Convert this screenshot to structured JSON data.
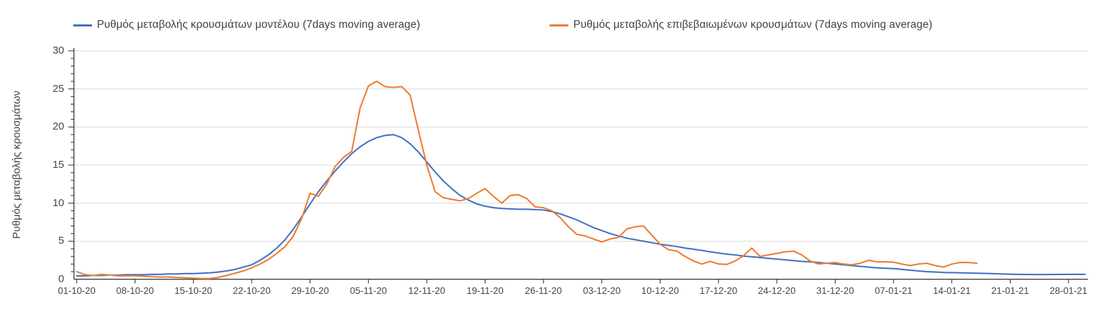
{
  "legend": {
    "items": [
      {
        "label": "Ρυθμός μεταβολής κρουσμάτων μοντέλου (7days moving average)",
        "color": "#4472c4"
      },
      {
        "label": "Ρυθμός μεταβολής επιβεβαιωμένων κρουσμάτων (7days moving average)",
        "color": "#ed7d31"
      }
    ]
  },
  "y_axis": {
    "title": "Ρυθμός μεταβολής κρουσμάτων",
    "tick_values": [
      0,
      5,
      10,
      15,
      20,
      25,
      30
    ],
    "minor_tick_step": 1,
    "min": 0,
    "max": 30
  },
  "x_axis": {
    "tick_labels": [
      "01-10-20",
      "08-10-20",
      "15-10-20",
      "22-10-20",
      "29-10-20",
      "05-11-20",
      "12-11-20",
      "19-11-20",
      "26-11-20",
      "03-12-20",
      "10-12-20",
      "17-12-20",
      "24-12-20",
      "31-12-20",
      "07-01-21",
      "14-01-21",
      "21-01-21",
      "28-01-21"
    ],
    "days_between_ticks": 7
  },
  "chart_data": {
    "type": "line",
    "title": "",
    "xlabel": "",
    "ylabel": "Ρυθμός μεταβολής κρουσμάτων",
    "ylim": [
      0,
      30
    ],
    "grid": "horizontal",
    "legend_position": "top",
    "x_start_date": "01-10-20",
    "x_frequency": "daily",
    "series": [
      {
        "name": "Ρυθμός μεταβολής κρουσμάτων μοντέλου (7days moving average)",
        "color": "#4472c4",
        "end_date": "30-01-21",
        "values": [
          0.45,
          0.45,
          0.5,
          0.5,
          0.55,
          0.55,
          0.6,
          0.6,
          0.6,
          0.65,
          0.65,
          0.7,
          0.7,
          0.75,
          0.75,
          0.8,
          0.85,
          0.95,
          1.1,
          1.3,
          1.6,
          1.9,
          2.5,
          3.2,
          4.1,
          5.2,
          6.6,
          8.2,
          9.9,
          11.5,
          12.9,
          14.2,
          15.4,
          16.5,
          17.4,
          18.1,
          18.6,
          18.9,
          19.0,
          18.6,
          17.8,
          16.7,
          15.4,
          14.1,
          12.9,
          11.9,
          11.0,
          10.4,
          9.9,
          9.6,
          9.4,
          9.3,
          9.25,
          9.2,
          9.2,
          9.15,
          9.1,
          8.9,
          8.6,
          8.2,
          7.8,
          7.3,
          6.8,
          6.4,
          6.0,
          5.7,
          5.4,
          5.2,
          5.0,
          4.8,
          4.6,
          4.45,
          4.3,
          4.1,
          3.95,
          3.8,
          3.6,
          3.45,
          3.3,
          3.2,
          3.05,
          2.95,
          2.85,
          2.75,
          2.65,
          2.55,
          2.45,
          2.35,
          2.3,
          2.2,
          2.1,
          2.0,
          1.9,
          1.8,
          1.7,
          1.6,
          1.5,
          1.45,
          1.4,
          1.3,
          1.2,
          1.1,
          1.0,
          0.95,
          0.9,
          0.88,
          0.85,
          0.82,
          0.8,
          0.77,
          0.74,
          0.7,
          0.67,
          0.65,
          0.63,
          0.62,
          0.62,
          0.63,
          0.64,
          0.65,
          0.65,
          0.65
        ]
      },
      {
        "name": "Ρυθμός μεταβολής επιβεβαιωμένων κρουσμάτων (7days moving average)",
        "color": "#ed7d31",
        "end_date": "17-01-21",
        "values": [
          1.0,
          0.6,
          0.5,
          0.65,
          0.55,
          0.45,
          0.45,
          0.45,
          0.4,
          0.35,
          0.3,
          0.3,
          0.25,
          0.2,
          0.15,
          0.1,
          0.1,
          0.25,
          0.5,
          0.8,
          1.1,
          1.5,
          2.0,
          2.6,
          3.4,
          4.3,
          5.7,
          8.0,
          11.3,
          10.9,
          12.5,
          14.8,
          16.0,
          16.8,
          22.5,
          25.4,
          26.0,
          25.3,
          25.2,
          25.3,
          24.2,
          19.5,
          15.0,
          11.5,
          10.7,
          10.5,
          10.3,
          10.6,
          11.3,
          11.9,
          10.9,
          10.0,
          11.0,
          11.1,
          10.6,
          9.5,
          9.4,
          9.0,
          8.1,
          6.9,
          5.9,
          5.7,
          5.3,
          4.9,
          5.3,
          5.5,
          6.6,
          6.9,
          7.0,
          5.8,
          4.6,
          3.9,
          3.7,
          3.0,
          2.4,
          2.0,
          2.35,
          2.0,
          1.95,
          2.4,
          3.1,
          4.1,
          3.0,
          3.2,
          3.4,
          3.6,
          3.7,
          3.2,
          2.4,
          2.0,
          2.1,
          2.2,
          2.0,
          1.9,
          2.1,
          2.5,
          2.3,
          2.3,
          2.25,
          2.0,
          1.8,
          2.0,
          2.1,
          1.8,
          1.6,
          2.0,
          2.2,
          2.2,
          2.1
        ]
      }
    ]
  },
  "style": {
    "gridline_color": "#d9d9d9",
    "axis_color": "#262626",
    "tick_label_color": "#454545",
    "background": "#ffffff"
  }
}
